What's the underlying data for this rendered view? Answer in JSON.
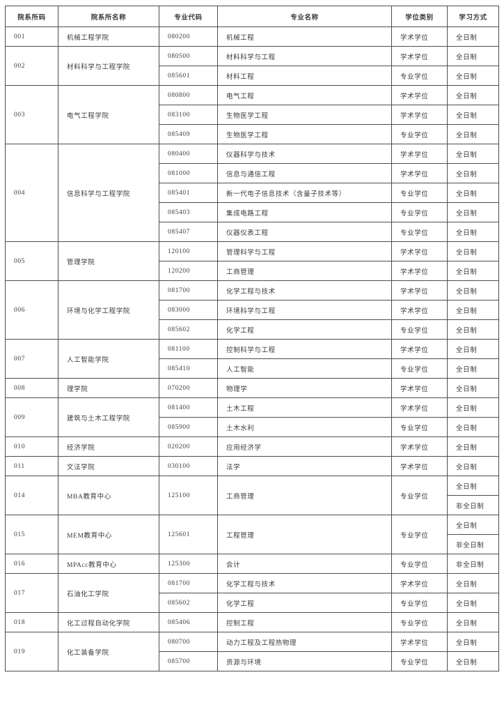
{
  "colors": {
    "background": "#ffffff",
    "border": "#4d4d4d",
    "text": "#3b3b3b"
  },
  "table": {
    "headers": {
      "dept_code": "院系所码",
      "dept_name": "院系所名称",
      "major_code": "专业代码",
      "major_name": "专业名称",
      "degree_type": "学位类别",
      "study_mode": "学习方式"
    },
    "departments": [
      {
        "code": "001",
        "name": "机械工程学院",
        "majors": [
          {
            "code": "080200",
            "name": "机械工程",
            "degree": "学术学位",
            "modes": [
              "全日制"
            ]
          }
        ]
      },
      {
        "code": "002",
        "name": "材料科学与工程学院",
        "majors": [
          {
            "code": "080500",
            "name": "材料科学与工程",
            "degree": "学术学位",
            "modes": [
              "全日制"
            ]
          },
          {
            "code": "085601",
            "name": "材料工程",
            "degree": "专业学位",
            "modes": [
              "全日制"
            ]
          }
        ]
      },
      {
        "code": "003",
        "name": "电气工程学院",
        "majors": [
          {
            "code": "080800",
            "name": "电气工程",
            "degree": "学术学位",
            "modes": [
              "全日制"
            ]
          },
          {
            "code": "083100",
            "name": "生物医学工程",
            "degree": "学术学位",
            "modes": [
              "全日制"
            ]
          },
          {
            "code": "085409",
            "name": "生物医学工程",
            "degree": "专业学位",
            "modes": [
              "全日制"
            ]
          }
        ]
      },
      {
        "code": "004",
        "name": "信息科学与工程学院",
        "majors": [
          {
            "code": "080400",
            "name": "仪器科学与技术",
            "degree": "学术学位",
            "modes": [
              "全日制"
            ]
          },
          {
            "code": "081000",
            "name": "信息与通信工程",
            "degree": "学术学位",
            "modes": [
              "全日制"
            ]
          },
          {
            "code": "085401",
            "name": "新一代电子信息技术（含量子技术等）",
            "degree": "专业学位",
            "modes": [
              "全日制"
            ]
          },
          {
            "code": "085403",
            "name": "集成电路工程",
            "degree": "专业学位",
            "modes": [
              "全日制"
            ]
          },
          {
            "code": "085407",
            "name": "仪器仪表工程",
            "degree": "专业学位",
            "modes": [
              "全日制"
            ]
          }
        ]
      },
      {
        "code": "005",
        "name": "管理学院",
        "majors": [
          {
            "code": "120100",
            "name": "管理科学与工程",
            "degree": "学术学位",
            "modes": [
              "全日制"
            ]
          },
          {
            "code": "120200",
            "name": "工商管理",
            "degree": "学术学位",
            "modes": [
              "全日制"
            ]
          }
        ]
      },
      {
        "code": "006",
        "name": "环境与化学工程学院",
        "majors": [
          {
            "code": "081700",
            "name": "化学工程与技术",
            "degree": "学术学位",
            "modes": [
              "全日制"
            ]
          },
          {
            "code": "083000",
            "name": "环境科学与工程",
            "degree": "学术学位",
            "modes": [
              "全日制"
            ]
          },
          {
            "code": "085602",
            "name": "化学工程",
            "degree": "专业学位",
            "modes": [
              "全日制"
            ]
          }
        ]
      },
      {
        "code": "007",
        "name": "人工智能学院",
        "majors": [
          {
            "code": "081100",
            "name": "控制科学与工程",
            "degree": "学术学位",
            "modes": [
              "全日制"
            ]
          },
          {
            "code": "085410",
            "name": "人工智能",
            "degree": "专业学位",
            "modes": [
              "全日制"
            ]
          }
        ]
      },
      {
        "code": "008",
        "name": "理学院",
        "majors": [
          {
            "code": "070200",
            "name": "物理学",
            "degree": "学术学位",
            "modes": [
              "全日制"
            ]
          }
        ]
      },
      {
        "code": "009",
        "name": "建筑与土木工程学院",
        "majors": [
          {
            "code": "081400",
            "name": "土木工程",
            "degree": "学术学位",
            "modes": [
              "全日制"
            ]
          },
          {
            "code": "085900",
            "name": "土木水利",
            "degree": "专业学位",
            "modes": [
              "全日制"
            ]
          }
        ]
      },
      {
        "code": "010",
        "name": "经济学院",
        "majors": [
          {
            "code": "020200",
            "name": "应用经济学",
            "degree": "学术学位",
            "modes": [
              "全日制"
            ]
          }
        ]
      },
      {
        "code": "011",
        "name": "文法学院",
        "majors": [
          {
            "code": "030100",
            "name": "法学",
            "degree": "学术学位",
            "modes": [
              "全日制"
            ]
          }
        ]
      },
      {
        "code": "014",
        "name": "MBA教育中心",
        "majors": [
          {
            "code": "125100",
            "name": "工商管理",
            "degree": "专业学位",
            "modes": [
              "全日制",
              "非全日制"
            ]
          }
        ]
      },
      {
        "code": "015",
        "name": "MEM教育中心",
        "majors": [
          {
            "code": "125601",
            "name": "工程管理",
            "degree": "专业学位",
            "modes": [
              "全日制",
              "非全日制"
            ]
          }
        ]
      },
      {
        "code": "016",
        "name": "MPAcc教育中心",
        "majors": [
          {
            "code": "125300",
            "name": "会计",
            "degree": "专业学位",
            "modes": [
              "非全日制"
            ]
          }
        ]
      },
      {
        "code": "017",
        "name": "石油化工学院",
        "majors": [
          {
            "code": "081700",
            "name": "化学工程与技术",
            "degree": "学术学位",
            "modes": [
              "全日制"
            ]
          },
          {
            "code": "085602",
            "name": "化学工程",
            "degree": "专业学位",
            "modes": [
              "全日制"
            ]
          }
        ]
      },
      {
        "code": "018",
        "name": "化工过程自动化学院",
        "majors": [
          {
            "code": "085406",
            "name": "控制工程",
            "degree": "专业学位",
            "modes": [
              "全日制"
            ]
          }
        ]
      },
      {
        "code": "019",
        "name": "化工装备学院",
        "majors": [
          {
            "code": "080700",
            "name": "动力工程及工程热物理",
            "degree": "学术学位",
            "modes": [
              "全日制"
            ]
          },
          {
            "code": "085700",
            "name": "资源与环境",
            "degree": "专业学位",
            "modes": [
              "全日制"
            ]
          }
        ]
      }
    ]
  }
}
